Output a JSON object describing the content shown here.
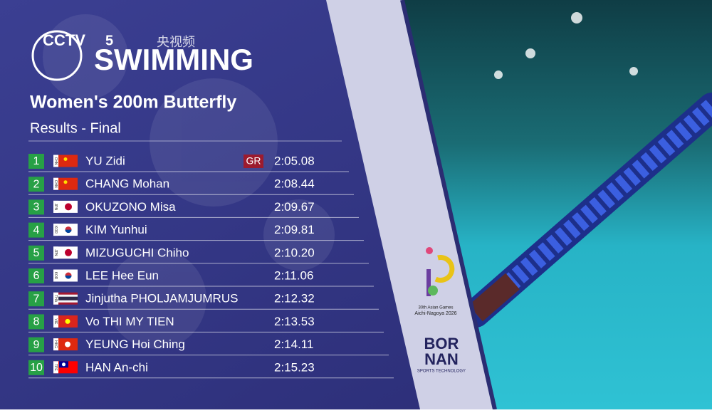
{
  "logos": {
    "broadcaster": "CCTV",
    "channel": "5",
    "app": "央视频",
    "games_line1": "30th Asian Games",
    "games_line2": "Aichi-Nagoya 2026",
    "sponsor_line1": "BOR",
    "sponsor_line2": "NAN",
    "sponsor_line3": "SPORTS TECHNOLOGY"
  },
  "header": {
    "sport": "SWIMMING",
    "event": "Women's 200m Butterfly",
    "phase": "Results - Final"
  },
  "results": [
    {
      "rank": 1,
      "country": "CHN",
      "name": "YU Zidi",
      "record": "GR",
      "time": "2:05.08"
    },
    {
      "rank": 2,
      "country": "CHN",
      "name": "CHANG Mohan",
      "time": "2:08.44"
    },
    {
      "rank": 3,
      "country": "JPN",
      "name": "OKUZONO Misa",
      "time": "2:09.67"
    },
    {
      "rank": 4,
      "country": "KOR",
      "name": "KIM Yunhui",
      "time": "2:09.81"
    },
    {
      "rank": 5,
      "country": "JPN",
      "name": "MIZUGUCHI Chiho",
      "time": "2:10.20"
    },
    {
      "rank": 6,
      "country": "KOR",
      "name": "LEE Hee Eun",
      "time": "2:11.06"
    },
    {
      "rank": 7,
      "country": "THA",
      "name": "Jinjutha PHOLJAMJUMRUS",
      "time": "2:12.32"
    },
    {
      "rank": 8,
      "country": "VIE",
      "name": "Vo THI MY TIEN",
      "time": "2:13.53"
    },
    {
      "rank": 9,
      "country": "HKG",
      "name": "YEUNG Hoi Ching",
      "time": "2:14.11"
    },
    {
      "rank": 10,
      "country": "TPE",
      "name": "HAN An-chi",
      "time": "2:15.23"
    }
  ]
}
